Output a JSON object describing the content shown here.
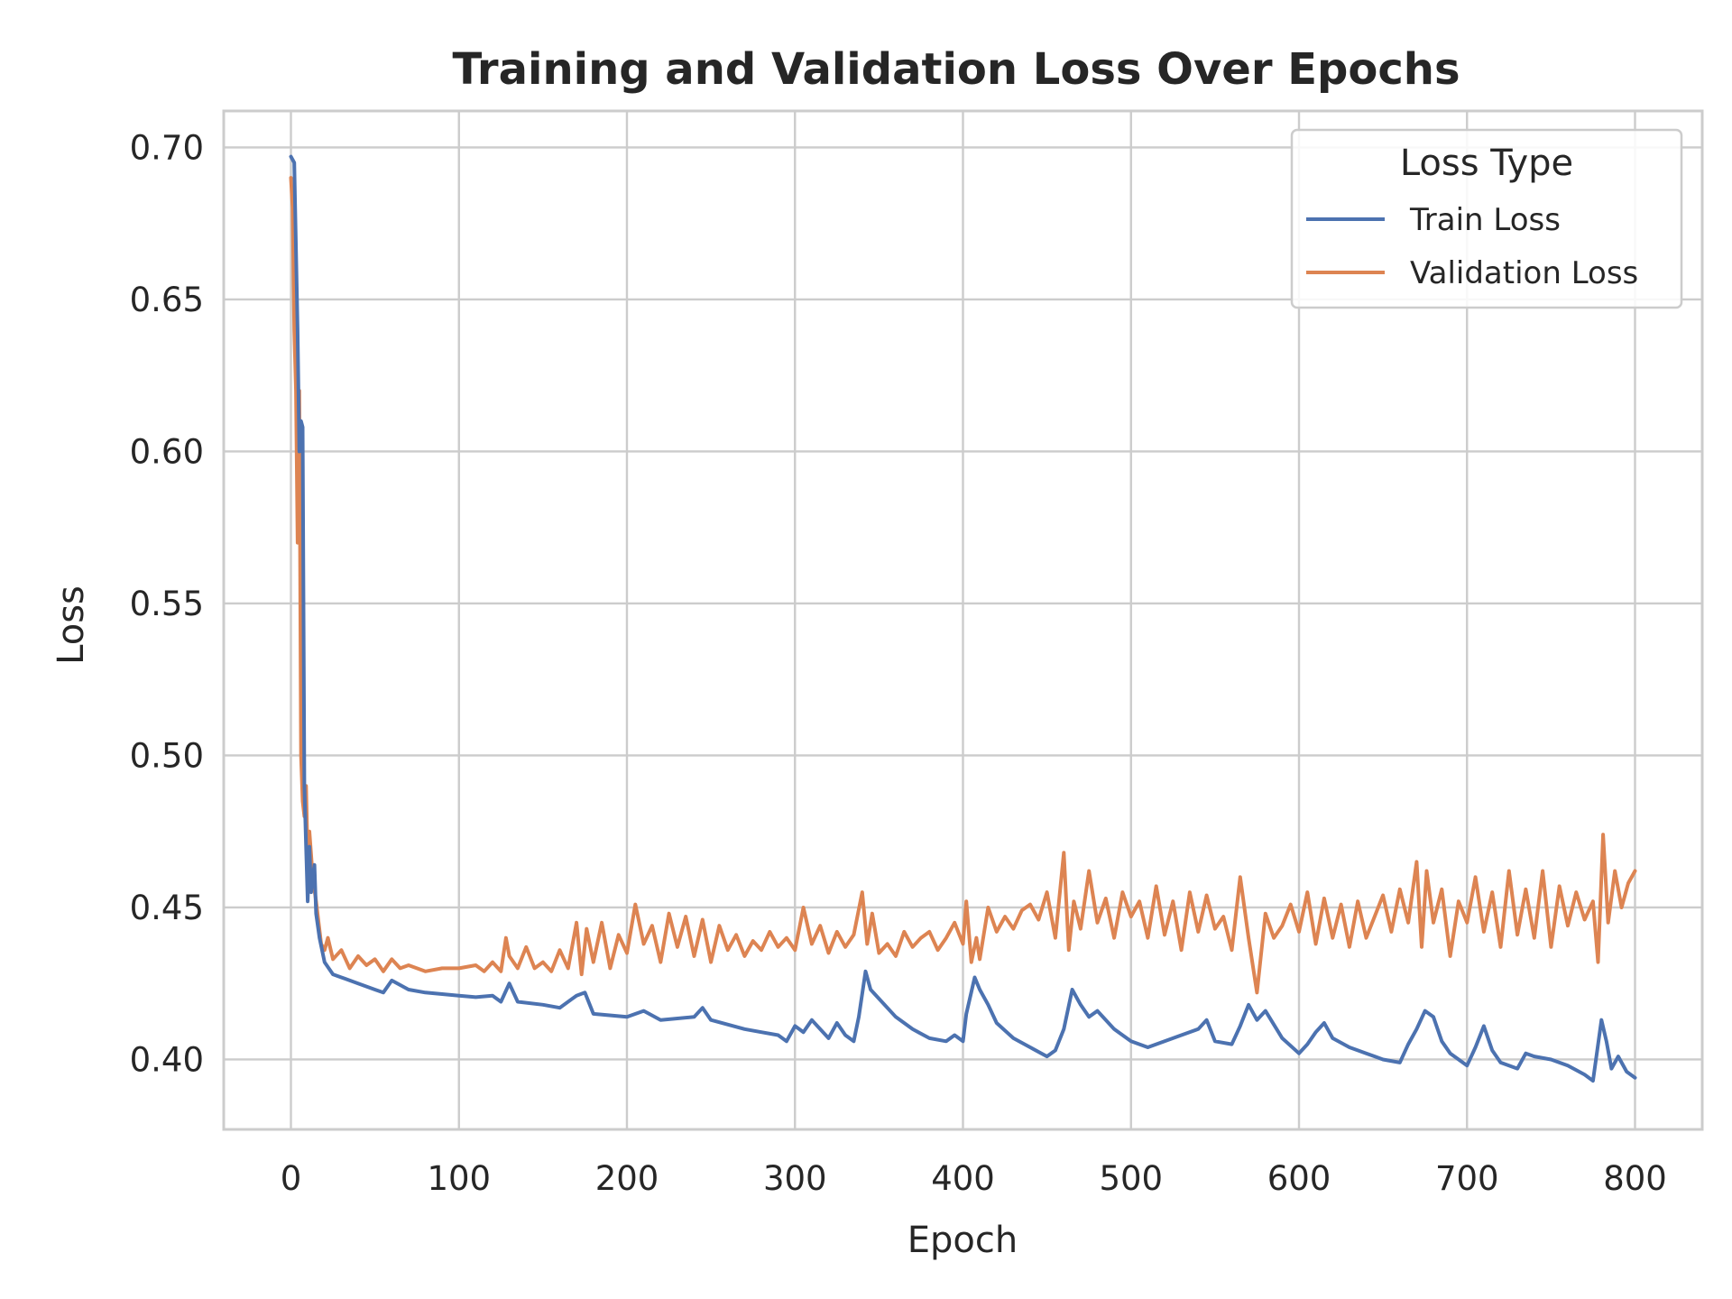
{
  "chart_data": {
    "type": "line",
    "title": "Training and Validation Loss Over Epochs",
    "xlabel": "Epoch",
    "ylabel": "Loss",
    "xlim": [
      -40,
      840
    ],
    "ylim": [
      0.377,
      0.712
    ],
    "xticks": [
      0,
      100,
      200,
      300,
      400,
      500,
      600,
      700,
      800
    ],
    "yticks": [
      0.4,
      0.45,
      0.5,
      0.55,
      0.6,
      0.65,
      0.7
    ],
    "ytick_labels": [
      "0.40",
      "0.45",
      "0.50",
      "0.55",
      "0.60",
      "0.65",
      "0.70"
    ],
    "grid": true,
    "legend": {
      "title": "Loss Type",
      "position": "top-right"
    },
    "series": [
      {
        "name": "Train Loss",
        "color": "#4c72b0",
        "points": [
          [
            0,
            0.697
          ],
          [
            2,
            0.695
          ],
          [
            4,
            0.64
          ],
          [
            5,
            0.6
          ],
          [
            6,
            0.61
          ],
          [
            7,
            0.608
          ],
          [
            8,
            0.49
          ],
          [
            9,
            0.47
          ],
          [
            10,
            0.452
          ],
          [
            11,
            0.47
          ],
          [
            12,
            0.455
          ],
          [
            13,
            0.46
          ],
          [
            14,
            0.464
          ],
          [
            15,
            0.448
          ],
          [
            17,
            0.44
          ],
          [
            20,
            0.432
          ],
          [
            25,
            0.428
          ],
          [
            30,
            0.427
          ],
          [
            40,
            0.425
          ],
          [
            50,
            0.423
          ],
          [
            55,
            0.422
          ],
          [
            60,
            0.426
          ],
          [
            70,
            0.423
          ],
          [
            80,
            0.422
          ],
          [
            100,
            0.421
          ],
          [
            110,
            0.4205
          ],
          [
            120,
            0.421
          ],
          [
            125,
            0.419
          ],
          [
            130,
            0.425
          ],
          [
            135,
            0.419
          ],
          [
            150,
            0.418
          ],
          [
            160,
            0.417
          ],
          [
            170,
            0.421
          ],
          [
            175,
            0.422
          ],
          [
            180,
            0.415
          ],
          [
            200,
            0.414
          ],
          [
            210,
            0.416
          ],
          [
            220,
            0.413
          ],
          [
            240,
            0.414
          ],
          [
            245,
            0.417
          ],
          [
            250,
            0.413
          ],
          [
            270,
            0.41
          ],
          [
            280,
            0.409
          ],
          [
            290,
            0.408
          ],
          [
            295,
            0.406
          ],
          [
            300,
            0.411
          ],
          [
            305,
            0.409
          ],
          [
            310,
            0.413
          ],
          [
            320,
            0.407
          ],
          [
            325,
            0.412
          ],
          [
            330,
            0.408
          ],
          [
            335,
            0.406
          ],
          [
            338,
            0.414
          ],
          [
            342,
            0.429
          ],
          [
            345,
            0.423
          ],
          [
            350,
            0.42
          ],
          [
            360,
            0.414
          ],
          [
            370,
            0.41
          ],
          [
            380,
            0.407
          ],
          [
            390,
            0.406
          ],
          [
            395,
            0.408
          ],
          [
            400,
            0.406
          ],
          [
            402,
            0.415
          ],
          [
            407,
            0.427
          ],
          [
            410,
            0.423
          ],
          [
            415,
            0.418
          ],
          [
            420,
            0.412
          ],
          [
            430,
            0.407
          ],
          [
            440,
            0.404
          ],
          [
            450,
            0.401
          ],
          [
            455,
            0.403
          ],
          [
            460,
            0.41
          ],
          [
            465,
            0.423
          ],
          [
            470,
            0.418
          ],
          [
            475,
            0.414
          ],
          [
            480,
            0.416
          ],
          [
            490,
            0.41
          ],
          [
            500,
            0.406
          ],
          [
            510,
            0.404
          ],
          [
            520,
            0.406
          ],
          [
            530,
            0.408
          ],
          [
            540,
            0.41
          ],
          [
            545,
            0.413
          ],
          [
            550,
            0.406
          ],
          [
            560,
            0.405
          ],
          [
            565,
            0.411
          ],
          [
            570,
            0.418
          ],
          [
            575,
            0.413
          ],
          [
            580,
            0.416
          ],
          [
            590,
            0.407
          ],
          [
            600,
            0.402
          ],
          [
            605,
            0.405
          ],
          [
            610,
            0.409
          ],
          [
            615,
            0.412
          ],
          [
            620,
            0.407
          ],
          [
            630,
            0.404
          ],
          [
            640,
            0.402
          ],
          [
            650,
            0.4
          ],
          [
            660,
            0.399
          ],
          [
            665,
            0.405
          ],
          [
            670,
            0.41
          ],
          [
            675,
            0.416
          ],
          [
            680,
            0.414
          ],
          [
            685,
            0.406
          ],
          [
            690,
            0.402
          ],
          [
            700,
            0.398
          ],
          [
            705,
            0.404
          ],
          [
            710,
            0.411
          ],
          [
            715,
            0.403
          ],
          [
            720,
            0.399
          ],
          [
            730,
            0.397
          ],
          [
            735,
            0.402
          ],
          [
            740,
            0.401
          ],
          [
            750,
            0.4
          ],
          [
            760,
            0.398
          ],
          [
            770,
            0.395
          ],
          [
            775,
            0.393
          ],
          [
            780,
            0.413
          ],
          [
            783,
            0.406
          ],
          [
            786,
            0.397
          ],
          [
            790,
            0.401
          ],
          [
            795,
            0.396
          ],
          [
            800,
            0.394
          ]
        ]
      },
      {
        "name": "Validation Loss",
        "color": "#dd8452",
        "points": [
          [
            0,
            0.69
          ],
          [
            1,
            0.68
          ],
          [
            2,
            0.64
          ],
          [
            3,
            0.62
          ],
          [
            4,
            0.57
          ],
          [
            5,
            0.62
          ],
          [
            6,
            0.5
          ],
          [
            7,
            0.485
          ],
          [
            8,
            0.48
          ],
          [
            9,
            0.49
          ],
          [
            10,
            0.465
          ],
          [
            11,
            0.475
          ],
          [
            13,
            0.46
          ],
          [
            15,
            0.452
          ],
          [
            18,
            0.438
          ],
          [
            20,
            0.436
          ],
          [
            22,
            0.44
          ],
          [
            25,
            0.433
          ],
          [
            30,
            0.436
          ],
          [
            35,
            0.43
          ],
          [
            40,
            0.434
          ],
          [
            45,
            0.431
          ],
          [
            50,
            0.433
          ],
          [
            55,
            0.429
          ],
          [
            60,
            0.433
          ],
          [
            65,
            0.43
          ],
          [
            70,
            0.431
          ],
          [
            80,
            0.429
          ],
          [
            90,
            0.43
          ],
          [
            100,
            0.43
          ],
          [
            110,
            0.431
          ],
          [
            115,
            0.429
          ],
          [
            120,
            0.432
          ],
          [
            125,
            0.429
          ],
          [
            128,
            0.44
          ],
          [
            130,
            0.434
          ],
          [
            135,
            0.43
          ],
          [
            140,
            0.437
          ],
          [
            145,
            0.43
          ],
          [
            150,
            0.432
          ],
          [
            155,
            0.429
          ],
          [
            160,
            0.436
          ],
          [
            165,
            0.43
          ],
          [
            170,
            0.445
          ],
          [
            173,
            0.428
          ],
          [
            176,
            0.443
          ],
          [
            180,
            0.432
          ],
          [
            185,
            0.445
          ],
          [
            190,
            0.43
          ],
          [
            195,
            0.441
          ],
          [
            200,
            0.435
          ],
          [
            205,
            0.451
          ],
          [
            210,
            0.438
          ],
          [
            215,
            0.444
          ],
          [
            220,
            0.432
          ],
          [
            225,
            0.448
          ],
          [
            230,
            0.437
          ],
          [
            235,
            0.447
          ],
          [
            240,
            0.434
          ],
          [
            245,
            0.446
          ],
          [
            250,
            0.432
          ],
          [
            255,
            0.444
          ],
          [
            260,
            0.436
          ],
          [
            265,
            0.441
          ],
          [
            270,
            0.434
          ],
          [
            275,
            0.439
          ],
          [
            280,
            0.436
          ],
          [
            285,
            0.442
          ],
          [
            290,
            0.437
          ],
          [
            295,
            0.44
          ],
          [
            300,
            0.436
          ],
          [
            305,
            0.45
          ],
          [
            310,
            0.438
          ],
          [
            315,
            0.444
          ],
          [
            320,
            0.435
          ],
          [
            325,
            0.442
          ],
          [
            330,
            0.437
          ],
          [
            335,
            0.441
          ],
          [
            340,
            0.455
          ],
          [
            343,
            0.438
          ],
          [
            346,
            0.448
          ],
          [
            350,
            0.435
          ],
          [
            355,
            0.438
          ],
          [
            360,
            0.434
          ],
          [
            365,
            0.442
          ],
          [
            370,
            0.437
          ],
          [
            375,
            0.44
          ],
          [
            380,
            0.442
          ],
          [
            385,
            0.436
          ],
          [
            390,
            0.44
          ],
          [
            395,
            0.445
          ],
          [
            400,
            0.438
          ],
          [
            402,
            0.452
          ],
          [
            405,
            0.432
          ],
          [
            408,
            0.44
          ],
          [
            410,
            0.433
          ],
          [
            415,
            0.45
          ],
          [
            420,
            0.442
          ],
          [
            425,
            0.447
          ],
          [
            430,
            0.443
          ],
          [
            435,
            0.449
          ],
          [
            440,
            0.451
          ],
          [
            445,
            0.446
          ],
          [
            450,
            0.455
          ],
          [
            455,
            0.44
          ],
          [
            460,
            0.468
          ],
          [
            463,
            0.436
          ],
          [
            466,
            0.452
          ],
          [
            470,
            0.443
          ],
          [
            475,
            0.462
          ],
          [
            480,
            0.445
          ],
          [
            485,
            0.453
          ],
          [
            490,
            0.44
          ],
          [
            495,
            0.455
          ],
          [
            500,
            0.447
          ],
          [
            505,
            0.452
          ],
          [
            510,
            0.44
          ],
          [
            515,
            0.457
          ],
          [
            520,
            0.441
          ],
          [
            525,
            0.452
          ],
          [
            530,
            0.436
          ],
          [
            535,
            0.455
          ],
          [
            540,
            0.442
          ],
          [
            545,
            0.454
          ],
          [
            550,
            0.443
          ],
          [
            555,
            0.447
          ],
          [
            560,
            0.436
          ],
          [
            565,
            0.46
          ],
          [
            570,
            0.44
          ],
          [
            575,
            0.422
          ],
          [
            580,
            0.448
          ],
          [
            585,
            0.44
          ],
          [
            590,
            0.444
          ],
          [
            595,
            0.451
          ],
          [
            600,
            0.442
          ],
          [
            605,
            0.455
          ],
          [
            610,
            0.438
          ],
          [
            615,
            0.453
          ],
          [
            620,
            0.44
          ],
          [
            625,
            0.451
          ],
          [
            630,
            0.437
          ],
          [
            635,
            0.452
          ],
          [
            640,
            0.44
          ],
          [
            645,
            0.447
          ],
          [
            650,
            0.454
          ],
          [
            655,
            0.442
          ],
          [
            660,
            0.456
          ],
          [
            665,
            0.445
          ],
          [
            670,
            0.465
          ],
          [
            673,
            0.437
          ],
          [
            676,
            0.462
          ],
          [
            680,
            0.445
          ],
          [
            685,
            0.456
          ],
          [
            690,
            0.434
          ],
          [
            695,
            0.452
          ],
          [
            700,
            0.445
          ],
          [
            705,
            0.46
          ],
          [
            710,
            0.442
          ],
          [
            715,
            0.455
          ],
          [
            720,
            0.437
          ],
          [
            725,
            0.462
          ],
          [
            730,
            0.441
          ],
          [
            735,
            0.456
          ],
          [
            740,
            0.44
          ],
          [
            745,
            0.462
          ],
          [
            750,
            0.437
          ],
          [
            755,
            0.457
          ],
          [
            760,
            0.444
          ],
          [
            765,
            0.455
          ],
          [
            770,
            0.446
          ],
          [
            775,
            0.452
          ],
          [
            778,
            0.432
          ],
          [
            781,
            0.474
          ],
          [
            784,
            0.445
          ],
          [
            788,
            0.462
          ],
          [
            792,
            0.45
          ],
          [
            796,
            0.458
          ],
          [
            800,
            0.462
          ]
        ]
      }
    ]
  }
}
